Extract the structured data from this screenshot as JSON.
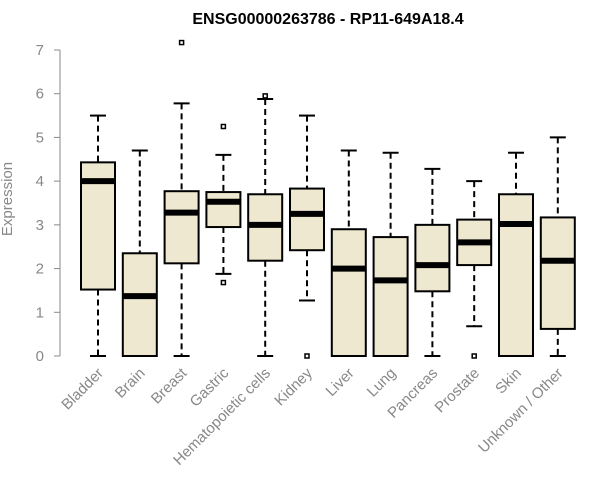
{
  "chart_data": {
    "type": "box",
    "title": "ENSG00000263786 - RP11-649A18.4",
    "xlabel": "",
    "ylabel": "Expression",
    "ylim": [
      0,
      7
    ],
    "yticks": [
      0,
      1,
      2,
      3,
      4,
      5,
      6,
      7
    ],
    "fill_color": "#EEE8D0",
    "categories": [
      "Bladder",
      "Brain",
      "Breast",
      "Gastric",
      "Hematopoietic cells",
      "Kidney",
      "Liver",
      "Lung",
      "Pancreas",
      "Prostate",
      "Skin",
      "Unknown / Other"
    ],
    "boxes": [
      {
        "min": 0,
        "q1": 1.52,
        "median": 4.0,
        "q3": 4.43,
        "max": 5.5,
        "outliers": []
      },
      {
        "min": 0,
        "q1": 0,
        "median": 1.37,
        "q3": 2.35,
        "max": 4.7,
        "outliers": []
      },
      {
        "min": 0,
        "q1": 2.12,
        "median": 3.28,
        "q3": 3.77,
        "max": 5.78,
        "outliers": [
          7.17
        ]
      },
      {
        "min": 1.88,
        "q1": 2.95,
        "median": 3.53,
        "q3": 3.75,
        "max": 4.6,
        "outliers": [
          5.25,
          1.68
        ]
      },
      {
        "min": 0,
        "q1": 2.18,
        "median": 3.0,
        "q3": 3.7,
        "max": 5.88,
        "outliers": [
          5.95
        ]
      },
      {
        "min": 1.27,
        "q1": 2.42,
        "median": 3.25,
        "q3": 3.83,
        "max": 5.5,
        "outliers": [
          0
        ]
      },
      {
        "min": 0,
        "q1": 0,
        "median": 2.0,
        "q3": 2.9,
        "max": 4.7,
        "outliers": []
      },
      {
        "min": 0,
        "q1": 0,
        "median": 1.73,
        "q3": 2.72,
        "max": 4.65,
        "outliers": []
      },
      {
        "min": 0,
        "q1": 1.48,
        "median": 2.08,
        "q3": 3.0,
        "max": 4.28,
        "outliers": []
      },
      {
        "min": 0.68,
        "q1": 2.08,
        "median": 2.6,
        "q3": 3.12,
        "max": 4.0,
        "outliers": [
          0
        ]
      },
      {
        "min": 0,
        "q1": 0,
        "median": 3.02,
        "q3": 3.7,
        "max": 4.65,
        "outliers": []
      },
      {
        "min": 0,
        "q1": 0.62,
        "median": 2.18,
        "q3": 3.17,
        "max": 5.0,
        "outliers": []
      }
    ]
  }
}
